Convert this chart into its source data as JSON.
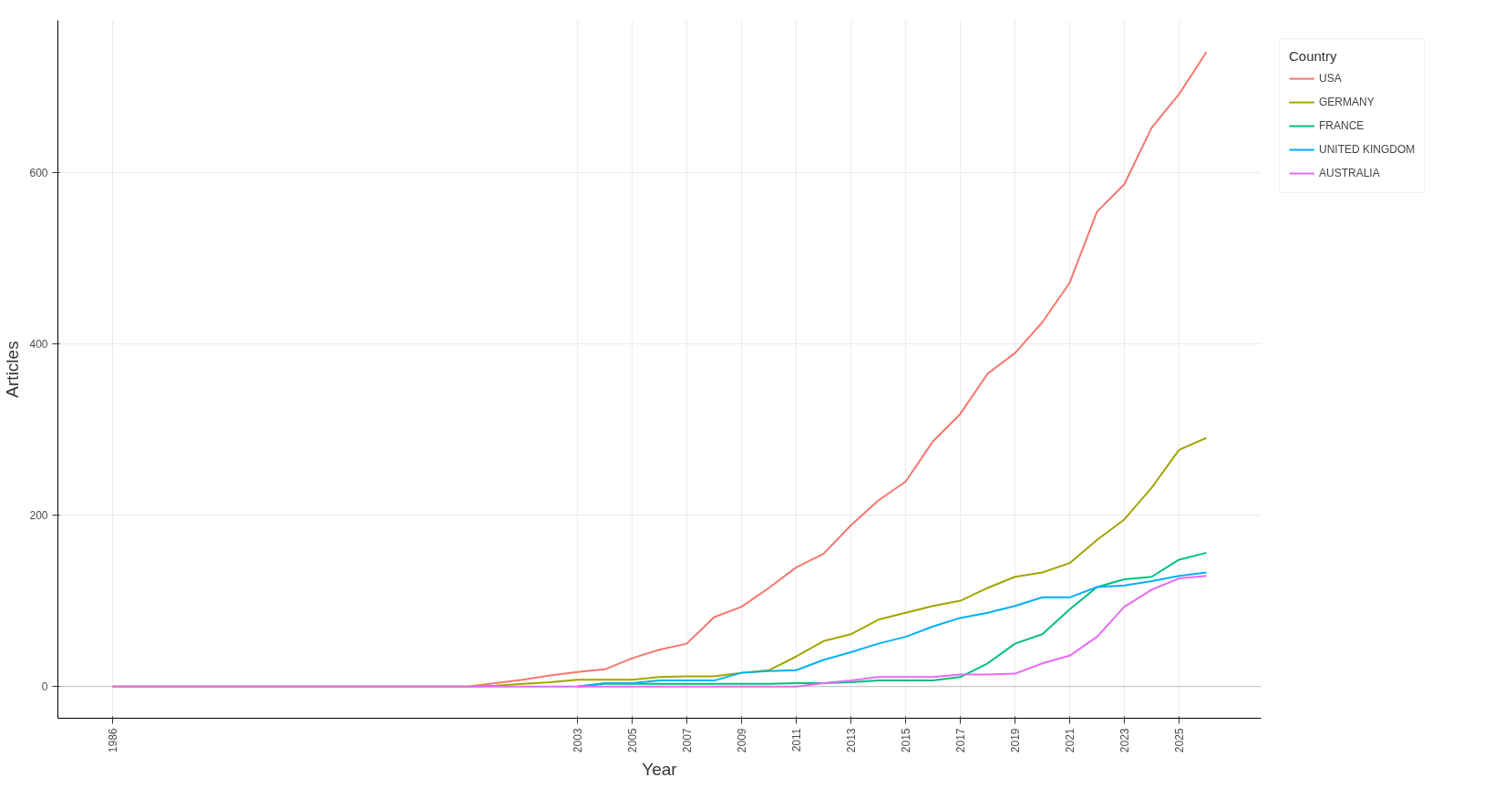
{
  "chart_data": {
    "type": "line",
    "xlabel": "Year",
    "ylabel": "Articles",
    "legend_title": "Country",
    "legend": "top right",
    "grid": true,
    "marker": "none",
    "line_style": "solid",
    "x": [
      1986,
      1999,
      2000,
      2001,
      2002,
      2003,
      2004,
      2005,
      2006,
      2007,
      2008,
      2009,
      2010,
      2011,
      2012,
      2013,
      2014,
      2015,
      2016,
      2017,
      2018,
      2019,
      2020,
      2021,
      2022,
      2023,
      2024,
      2025,
      2026
    ],
    "xlim": [
      1984,
      2028
    ],
    "xticks": [
      1986,
      2003,
      2005,
      2007,
      2009,
      2011,
      2013,
      2015,
      2017,
      2019,
      2021,
      2023,
      2025
    ],
    "ylim": [
      -37,
      777
    ],
    "yticks": [
      0,
      200,
      400,
      600
    ],
    "ref_lines": [
      {
        "axis": "y",
        "value": 0,
        "color": "#c8c8c8"
      }
    ],
    "series": [
      {
        "name": "USA",
        "color": "#f8766d",
        "values": [
          0,
          0,
          4,
          8,
          13,
          17,
          20,
          33,
          43,
          50,
          81,
          93,
          115,
          139,
          155,
          188,
          217,
          239,
          286,
          318,
          365,
          389,
          425,
          471,
          554,
          586,
          652,
          691,
          740
        ]
      },
      {
        "name": "GERMANY",
        "color": "#a3a500",
        "values": [
          0,
          0,
          1,
          3,
          5,
          8,
          8,
          8,
          11,
          12,
          12,
          16,
          19,
          35,
          53,
          61,
          78,
          86,
          94,
          100,
          115,
          128,
          133,
          144,
          171,
          195,
          232,
          276,
          290
        ]
      },
      {
        "name": "FRANCE",
        "color": "#00bf7d",
        "x": [
          2003,
          2004,
          2005,
          2006,
          2007,
          2008,
          2009,
          2010,
          2011,
          2012,
          2013,
          2014,
          2015,
          2016,
          2017,
          2018,
          2019,
          2020,
          2021,
          2022,
          2023,
          2024,
          2025,
          2026
        ],
        "values": [
          0,
          3,
          3,
          3,
          3,
          3,
          3,
          3,
          4,
          4,
          5,
          7,
          7,
          7,
          11,
          27,
          50,
          61,
          90,
          116,
          125,
          128,
          148,
          156
        ]
      },
      {
        "name": "UNITED KINGDOM",
        "color": "#00b0f6",
        "x": [
          2003,
          2004,
          2005,
          2006,
          2007,
          2008,
          2009,
          2010,
          2011,
          2012,
          2013,
          2014,
          2015,
          2016,
          2017,
          2018,
          2019,
          2020,
          2021,
          2022,
          2023,
          2024,
          2025,
          2026
        ],
        "values": [
          0,
          4,
          4,
          7,
          7,
          7,
          16,
          18,
          19,
          31,
          40,
          50,
          58,
          70,
          80,
          86,
          94,
          104,
          104,
          116,
          118,
          123,
          129,
          133
        ]
      },
      {
        "name": "AUSTRALIA",
        "color": "#e76bf3",
        "values": [
          0,
          0,
          0,
          0,
          0,
          0,
          0,
          0,
          0,
          0,
          0,
          0,
          0,
          0,
          4,
          7,
          11,
          11,
          11,
          14,
          14,
          15,
          27,
          36,
          58,
          93,
          113,
          126,
          129
        ]
      }
    ]
  }
}
